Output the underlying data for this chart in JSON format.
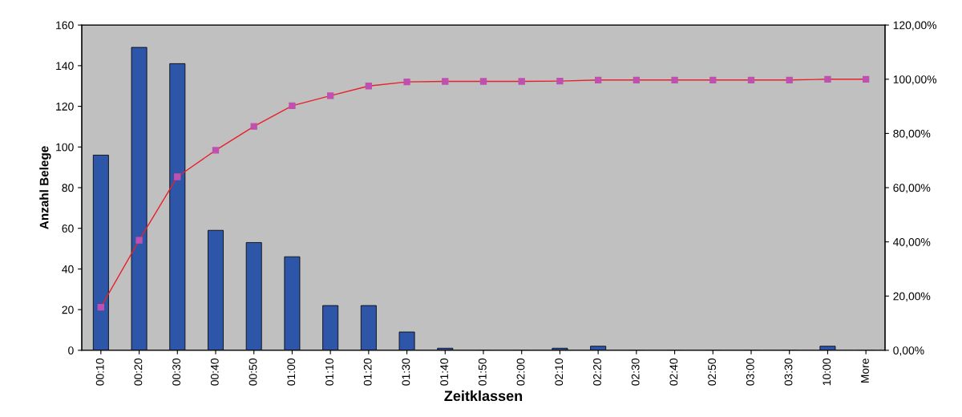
{
  "chart_data": {
    "type": "bar",
    "xlabel": "Zeitklassen",
    "ylabel": "Anzahl Belege",
    "categories": [
      "00:10",
      "00:20",
      "00:30",
      "00:40",
      "00:50",
      "01:00",
      "01:10",
      "01:20",
      "01:30",
      "01:40",
      "01:50",
      "02:00",
      "02:10",
      "02:20",
      "02:30",
      "02:40",
      "02:50",
      "03:00",
      "03:30",
      "10:00",
      "More"
    ],
    "series": [
      {
        "color": "#2e56a8",
        "values": [
          96,
          149,
          141,
          59,
          53,
          46,
          22,
          22,
          9,
          1,
          0,
          0,
          1,
          2,
          0,
          0,
          0,
          0,
          0,
          2,
          0
        ]
      },
      {
        "type": "line",
        "axis": "y2",
        "color": "#e8202a",
        "marker": "square",
        "values": [
          15.9,
          40.6,
          64.0,
          73.8,
          82.6,
          90.2,
          93.9,
          97.5,
          99.0,
          99.2,
          99.2,
          99.2,
          99.3,
          99.7,
          99.7,
          99.7,
          99.7,
          99.7,
          99.7,
          100.0,
          100.0
        ]
      }
    ],
    "ylim": [
      0,
      160
    ],
    "yticks": [
      0,
      20,
      40,
      60,
      80,
      100,
      120,
      140,
      160
    ],
    "y2lim": [
      0,
      120
    ],
    "y2ticks": [
      {
        "value": 0,
        "label": "0,00%"
      },
      {
        "value": 20,
        "label": "20,00%"
      },
      {
        "value": 40,
        "label": "40,00%"
      },
      {
        "value": 60,
        "label": "60,00%"
      },
      {
        "value": 80,
        "label": "80,00%"
      },
      {
        "value": 100,
        "label": "100,00%"
      },
      {
        "value": 120,
        "label": "120,00%"
      }
    ],
    "grid": false,
    "legend": false
  }
}
